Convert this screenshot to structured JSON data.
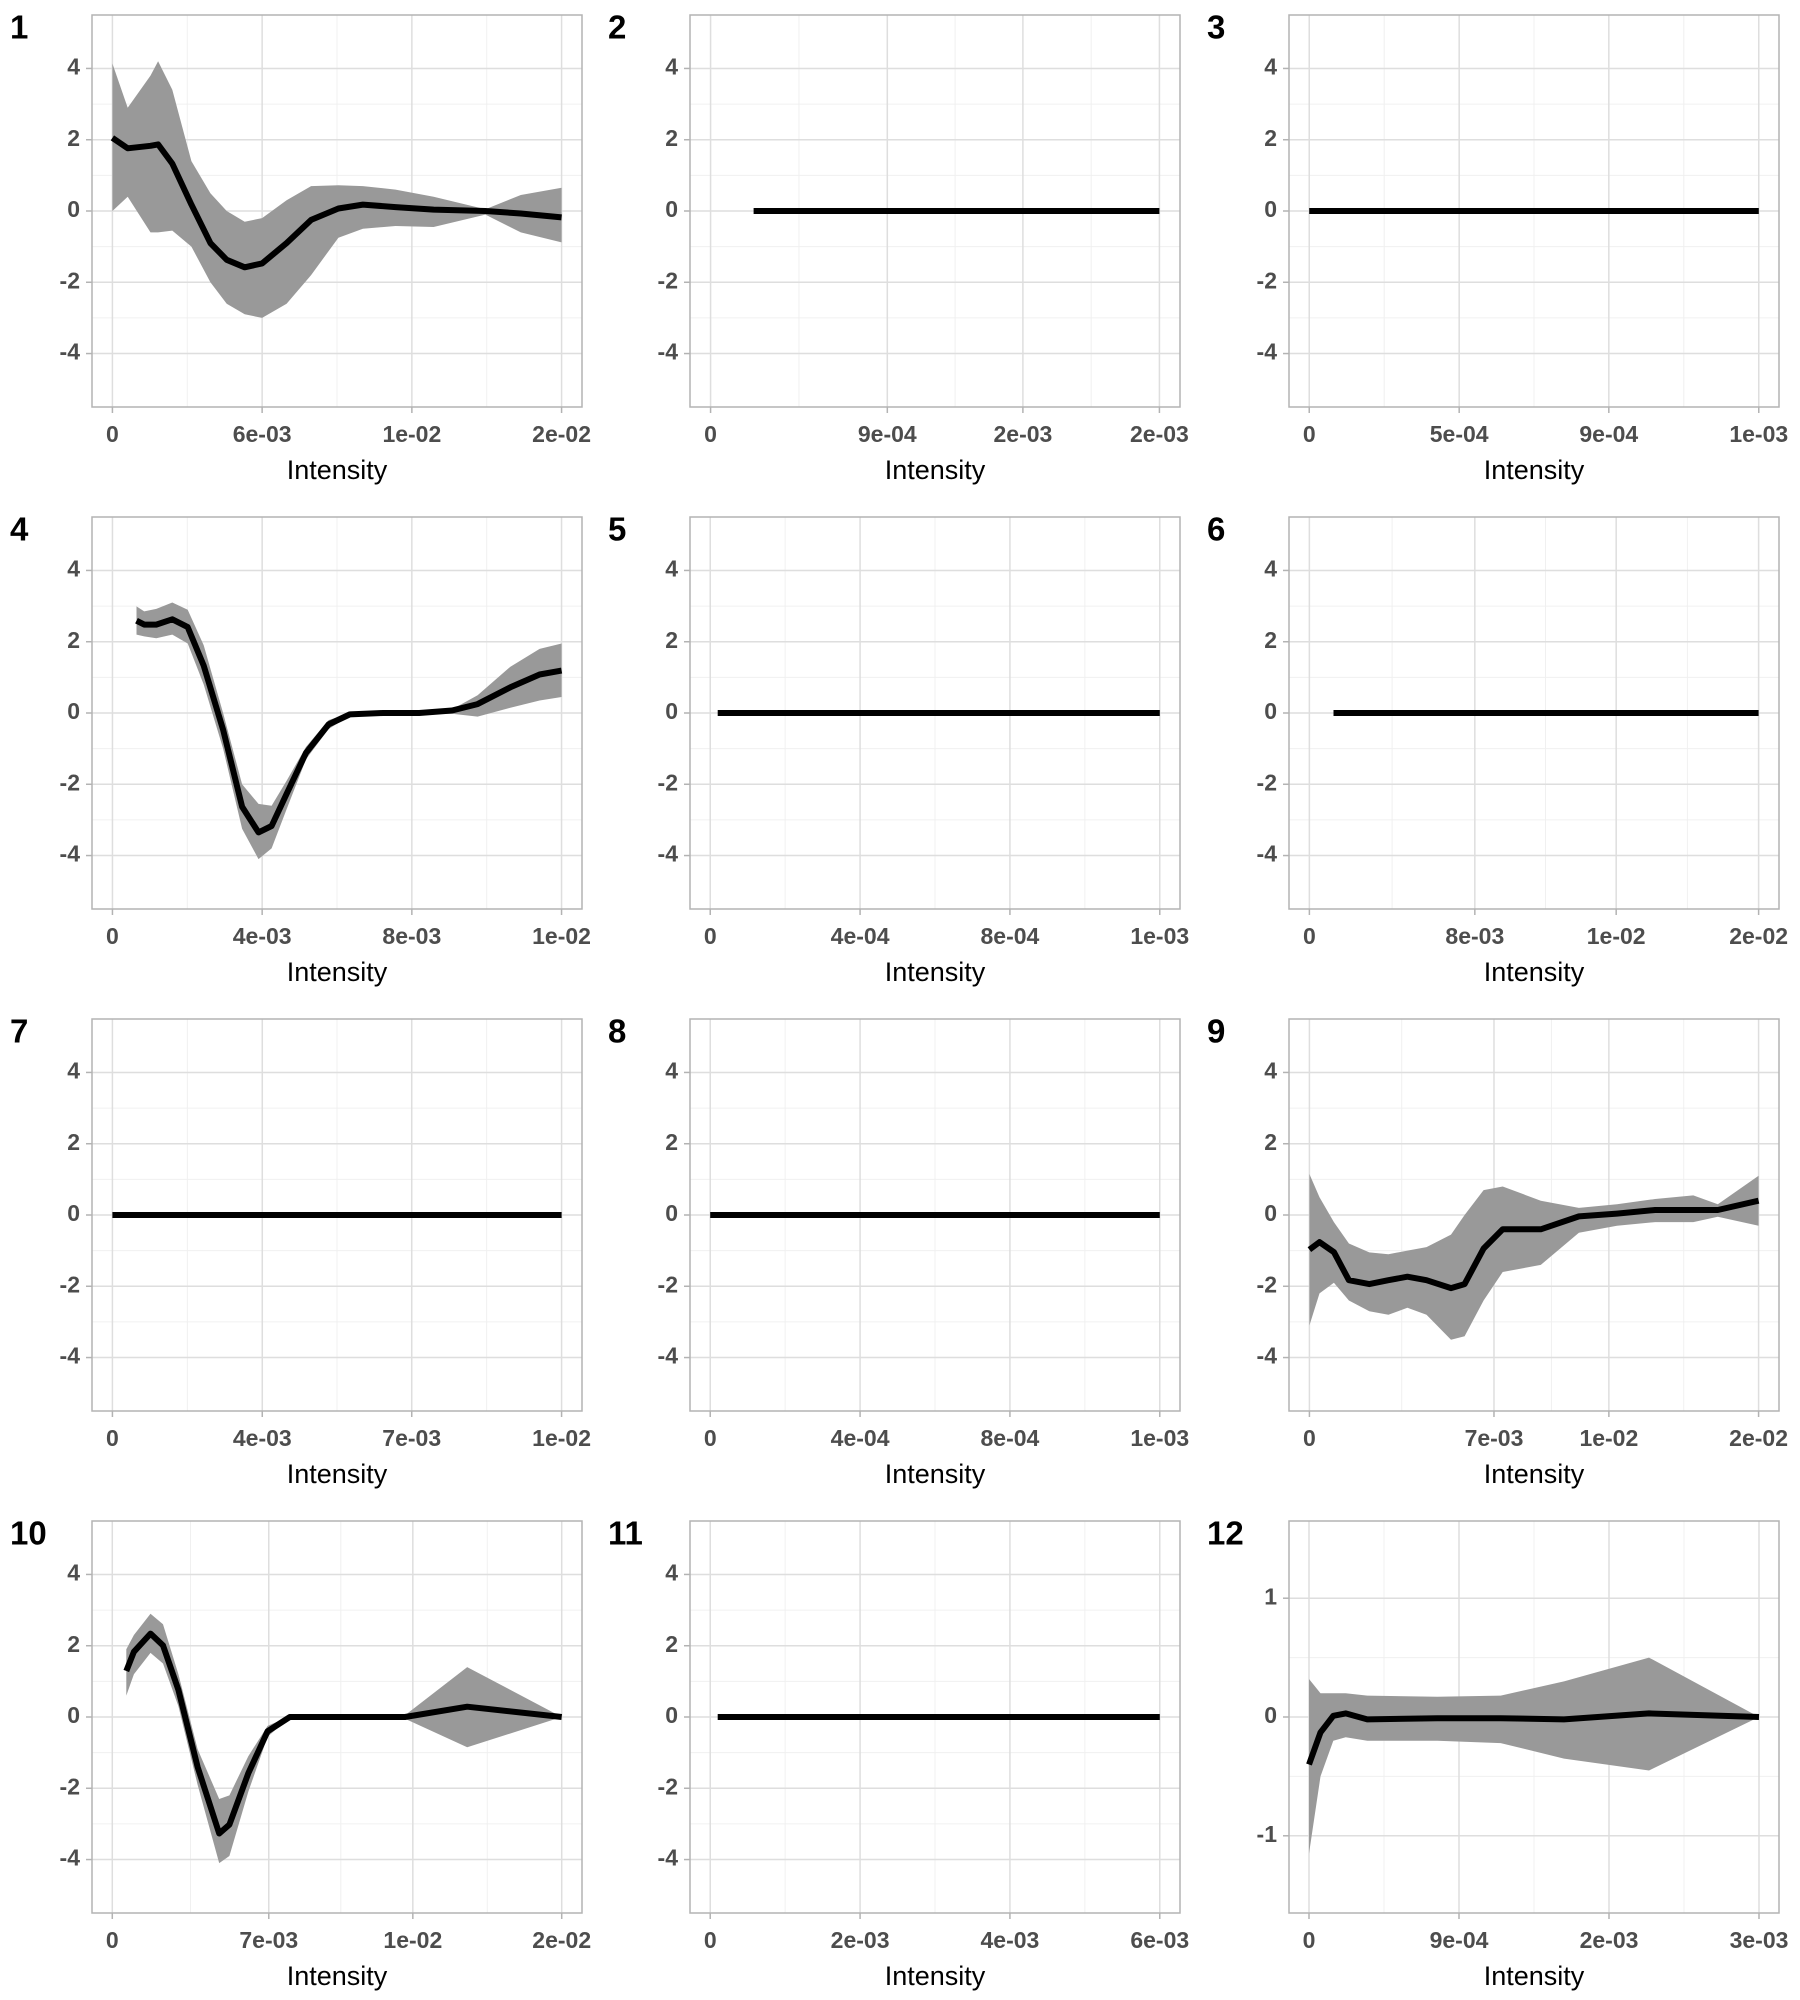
{
  "chart_data": [
    {
      "type": "line",
      "title": "1",
      "xlabel": "Intensity",
      "color": "#000000",
      "band_color": "#999999",
      "grid": true,
      "x": [
        0,
        0.00056,
        0.0014,
        0.00168,
        0.0022,
        0.0029,
        0.0036,
        0.0042,
        0.00486,
        0.0055,
        0.0064,
        0.0073,
        0.0083,
        0.0092,
        0.0104,
        0.0118,
        0.0137,
        0.015,
        0.0165
      ],
      "values": [
        2.05,
        1.76,
        1.83,
        1.87,
        1.33,
        0.18,
        -0.9,
        -1.37,
        -1.58,
        -1.47,
        -0.9,
        -0.25,
        0.07,
        0.18,
        0.11,
        0.04,
        0,
        -0.07,
        -0.18
      ],
      "upper": [
        4.14,
        2.9,
        3.8,
        4.2,
        3.4,
        1.4,
        0.5,
        0,
        -0.3,
        -0.2,
        0.3,
        0.7,
        0.72,
        0.7,
        0.6,
        0.4,
        0.05,
        0.45,
        0.65
      ],
      "lower": [
        0,
        0.4,
        -0.6,
        -0.6,
        -0.55,
        -1.0,
        -2.0,
        -2.6,
        -2.9,
        -3.0,
        -2.6,
        -1.8,
        -0.75,
        -0.5,
        -0.42,
        -0.45,
        -0.1,
        -0.6,
        -0.88
      ],
      "xlim": [
        -0.00075,
        0.01725
      ],
      "xticks": [
        0,
        {
          "value": 0.0055,
          "label": "6e-03"
        },
        {
          "value": 0.011,
          "label": "1e-02"
        },
        {
          "value": 0.0165,
          "label": "2e-02"
        }
      ],
      "ylim": [
        -5.5,
        5.5
      ],
      "yticks": [
        -4,
        -2,
        0,
        2,
        4
      ]
    },
    {
      "type": "line",
      "title": "2",
      "xlabel": "Intensity",
      "color": "#000000",
      "grid": true,
      "x": [
        0.00023,
        0.0024
      ],
      "values": [
        0,
        0
      ],
      "xlim": [
        -0.00011,
        0.00251
      ],
      "xticks": [
        0,
        {
          "value": 0.000945,
          "label": "9e-04"
        },
        {
          "value": 0.00167,
          "label": "2e-03"
        },
        {
          "value": 0.0024,
          "label": "2e-03"
        }
      ],
      "ylim": [
        -5.5,
        5.5
      ],
      "yticks": [
        -4,
        -2,
        0,
        2,
        4
      ]
    },
    {
      "type": "line",
      "title": "3",
      "xlabel": "Intensity",
      "color": "#000000",
      "grid": true,
      "x": [
        0,
        0.0014
      ],
      "values": [
        0,
        0
      ],
      "xlim": [
        -6.3e-05,
        0.001463
      ],
      "xticks": [
        0,
        {
          "value": 0.000467,
          "label": "5e-04"
        },
        {
          "value": 0.000933,
          "label": "9e-04"
        },
        {
          "value": 0.0014,
          "label": "1e-03"
        }
      ],
      "ylim": [
        -5.5,
        5.5
      ],
      "yticks": [
        -4,
        -2,
        0,
        2,
        4
      ]
    },
    {
      "type": "line",
      "title": "4",
      "xlabel": "Intensity",
      "color": "#000000",
      "band_color": "#999999",
      "grid": true,
      "x": [
        0.00066,
        0.00087,
        0.0012,
        0.00164,
        0.00206,
        0.0025,
        0.00303,
        0.00355,
        0.004,
        0.00436,
        0.00477,
        0.0053,
        0.00592,
        0.0065,
        0.0074,
        0.0084,
        0.0093,
        0.01,
        0.0109,
        0.0117,
        0.0123
      ],
      "values": [
        2.59,
        2.48,
        2.48,
        2.63,
        2.41,
        1.33,
        -0.47,
        -2.63,
        -3.35,
        -3.17,
        -2.27,
        -1.12,
        -0.32,
        -0.04,
        0,
        0,
        0.07,
        0.25,
        0.72,
        1.08,
        1.19
      ],
      "upper": [
        2.99,
        2.85,
        2.92,
        3.1,
        2.9,
        1.9,
        0,
        -2.0,
        -2.55,
        -2.6,
        -1.9,
        -0.95,
        -0.2,
        0,
        0.02,
        0.02,
        0.1,
        0.5,
        1.3,
        1.8,
        1.95
      ],
      "lower": [
        2.2,
        2.15,
        2.1,
        2.2,
        1.95,
        0.8,
        -1.0,
        -3.25,
        -4.1,
        -3.8,
        -2.7,
        -1.3,
        -0.45,
        -0.08,
        -0.02,
        -0.02,
        -0.02,
        -0.1,
        0.15,
        0.35,
        0.45
      ],
      "xlim": [
        -0.00056,
        0.01286
      ],
      "xticks": [
        0,
        {
          "value": 0.0041,
          "label": "4e-03"
        },
        {
          "value": 0.0082,
          "label": "8e-03"
        },
        {
          "value": 0.0123,
          "label": "1e-02"
        }
      ],
      "ylim": [
        -5.5,
        5.5
      ],
      "yticks": [
        -4,
        -2,
        0,
        2,
        4
      ]
    },
    {
      "type": "line",
      "title": "5",
      "xlabel": "Intensity",
      "color": "#000000",
      "grid": true,
      "x": [
        2e-05,
        0.0012
      ],
      "values": [
        0,
        0
      ],
      "xlim": [
        -5.4e-05,
        0.001254
      ],
      "xticks": [
        0,
        {
          "value": 0.0004,
          "label": "4e-04"
        },
        {
          "value": 0.0008,
          "label": "8e-04"
        },
        {
          "value": 0.0012,
          "label": "1e-03"
        }
      ],
      "ylim": [
        -5.5,
        5.5
      ],
      "yticks": [
        -4,
        -2,
        0,
        2,
        4
      ]
    },
    {
      "type": "line",
      "title": "6",
      "xlabel": "Intensity",
      "color": "#000000",
      "grid": true,
      "x": [
        0.0011,
        0.0205
      ],
      "values": [
        0,
        0
      ],
      "xlim": [
        -0.00093,
        0.02143
      ],
      "xticks": [
        0,
        {
          "value": 0.00755,
          "label": "8e-03"
        },
        {
          "value": 0.014,
          "label": "1e-02"
        },
        {
          "value": 0.0205,
          "label": "2e-02"
        }
      ],
      "ylim": [
        -5.5,
        5.5
      ],
      "yticks": [
        -4,
        -2,
        0,
        2,
        4
      ]
    },
    {
      "type": "line",
      "title": "7",
      "xlabel": "Intensity",
      "color": "#000000",
      "grid": true,
      "x": [
        0,
        0.011
      ],
      "values": [
        0,
        0
      ],
      "xlim": [
        -0.0005,
        0.0115
      ],
      "xticks": [
        0,
        {
          "value": 0.00367,
          "label": "4e-03"
        },
        {
          "value": 0.00733,
          "label": "7e-03"
        },
        {
          "value": 0.011,
          "label": "1e-02"
        }
      ],
      "ylim": [
        -5.5,
        5.5
      ],
      "yticks": [
        -4,
        -2,
        0,
        2,
        4
      ]
    },
    {
      "type": "line",
      "title": "8",
      "xlabel": "Intensity",
      "color": "#000000",
      "grid": true,
      "x": [
        0,
        0.0012
      ],
      "values": [
        0,
        0
      ],
      "xlim": [
        -5.4e-05,
        0.001254
      ],
      "xticks": [
        0,
        {
          "value": 0.0004,
          "label": "4e-04"
        },
        {
          "value": 0.0008,
          "label": "8e-04"
        },
        {
          "value": 0.0012,
          "label": "1e-03"
        }
      ],
      "ylim": [
        -5.5,
        5.5
      ],
      "yticks": [
        -4,
        -2,
        0,
        2,
        4
      ]
    },
    {
      "type": "line",
      "title": "9",
      "xlabel": "Intensity",
      "color": "#000000",
      "band_color": "#999999",
      "grid": true,
      "x": [
        0,
        0.00037,
        0.0009,
        0.00145,
        0.0022,
        0.0029,
        0.0036,
        0.0043,
        0.0052,
        0.0057,
        0.0064,
        0.0071,
        0.0085,
        0.0099,
        0.0113,
        0.0127,
        0.0141,
        0.015,
        0.0165
      ],
      "values": [
        -0.97,
        -0.76,
        -1.04,
        -1.83,
        -1.94,
        -1.83,
        -1.73,
        -1.83,
        -2.05,
        -1.94,
        -0.94,
        -0.4,
        -0.4,
        -0.04,
        0.04,
        0.14,
        0.14,
        0.14,
        0.4
      ],
      "upper": [
        1.15,
        0.5,
        -0.2,
        -0.8,
        -1.05,
        -1.1,
        -1.0,
        -0.9,
        -0.55,
        0,
        0.7,
        0.8,
        0.4,
        0.2,
        0.3,
        0.45,
        0.55,
        0.3,
        1.1
      ],
      "lower": [
        -3.1,
        -2.2,
        -1.9,
        -2.4,
        -2.7,
        -2.8,
        -2.6,
        -2.8,
        -3.5,
        -3.4,
        -2.4,
        -1.6,
        -1.4,
        -0.5,
        -0.3,
        -0.2,
        -0.2,
        -0.05,
        -0.3
      ],
      "xlim": [
        -0.00075,
        0.01725
      ],
      "xticks": [
        0,
        {
          "value": 0.00678,
          "label": "7e-03"
        },
        {
          "value": 0.011,
          "label": "1e-02"
        },
        {
          "value": 0.0165,
          "label": "2e-02"
        }
      ],
      "ylim": [
        -5.5,
        5.5
      ],
      "yticks": [
        -4,
        -2,
        0,
        2,
        4
      ]
    },
    {
      "type": "line",
      "title": "10",
      "xlabel": "Intensity",
      "color": "#000000",
      "band_color": "#999999",
      "grid": true,
      "x": [
        0.00061,
        0.00094,
        0.00166,
        0.0022,
        0.00287,
        0.0037,
        0.00464,
        0.00508,
        0.0059,
        0.00674,
        0.0077,
        0.0106,
        0.0127,
        0.0154,
        0.0195
      ],
      "values": [
        1.29,
        1.83,
        2.34,
        2.01,
        0.76,
        -1.4,
        -3.27,
        -3.02,
        -1.58,
        -0.4,
        0,
        0,
        0,
        0.29,
        0
      ],
      "upper": [
        1.9,
        2.3,
        2.9,
        2.6,
        1.2,
        -0.9,
        -2.3,
        -2.2,
        -1.1,
        -0.25,
        0.02,
        0.02,
        0.05,
        1.4,
        0
      ],
      "lower": [
        0.6,
        1.2,
        1.8,
        1.5,
        0.3,
        -1.9,
        -4.1,
        -3.9,
        -2.1,
        -0.55,
        -0.02,
        -0.02,
        -0.05,
        -0.85,
        0
      ],
      "xlim": [
        -0.00088,
        0.02038
      ],
      "xticks": [
        0,
        {
          "value": 0.00679,
          "label": "7e-03"
        },
        {
          "value": 0.01304,
          "label": "1e-02"
        },
        {
          "value": 0.0195,
          "label": "2e-02"
        }
      ],
      "ylim": [
        -5.5,
        5.5
      ],
      "yticks": [
        -4,
        -2,
        0,
        2,
        4
      ]
    },
    {
      "type": "line",
      "title": "11",
      "xlabel": "Intensity",
      "color": "#000000",
      "grid": true,
      "x": [
        0.0001,
        0.006
      ],
      "values": [
        0,
        0
      ],
      "xlim": [
        -0.00027,
        0.00627
      ],
      "xticks": [
        0,
        {
          "value": 0.002,
          "label": "2e-03"
        },
        {
          "value": 0.004,
          "label": "4e-03"
        },
        {
          "value": 0.006,
          "label": "6e-03"
        }
      ],
      "ylim": [
        -5.5,
        5.5
      ],
      "yticks": [
        -4,
        -2,
        0,
        2,
        4
      ]
    },
    {
      "type": "line",
      "title": "12",
      "xlabel": "Intensity",
      "color": "#000000",
      "band_color": "#999999",
      "grid": true,
      "x": [
        0,
        6.9e-05,
        0.000146,
        0.00022,
        0.00035,
        0.00077,
        0.00115,
        0.00153,
        0.00204,
        0.0027
      ],
      "values": [
        -0.4,
        -0.13,
        0.01,
        0.03,
        -0.02,
        -0.01,
        -0.01,
        -0.02,
        0.03,
        0
      ],
      "upper": [
        0.32,
        0.2,
        0.2,
        0.2,
        0.18,
        0.17,
        0.18,
        0.3,
        0.5,
        0
      ],
      "lower": [
        -1.15,
        -0.5,
        -0.2,
        -0.17,
        -0.2,
        -0.2,
        -0.22,
        -0.35,
        -0.45,
        0
      ],
      "xlim": [
        -0.00012,
        0.00282
      ],
      "xticks": [
        0,
        {
          "value": 0.0009,
          "label": "9e-04"
        },
        {
          "value": 0.0018,
          "label": "2e-03"
        },
        {
          "value": 0.0027,
          "label": "3e-03"
        }
      ],
      "ylim": [
        -1.65,
        1.65
      ],
      "yticks": [
        -1,
        0,
        1
      ]
    }
  ]
}
